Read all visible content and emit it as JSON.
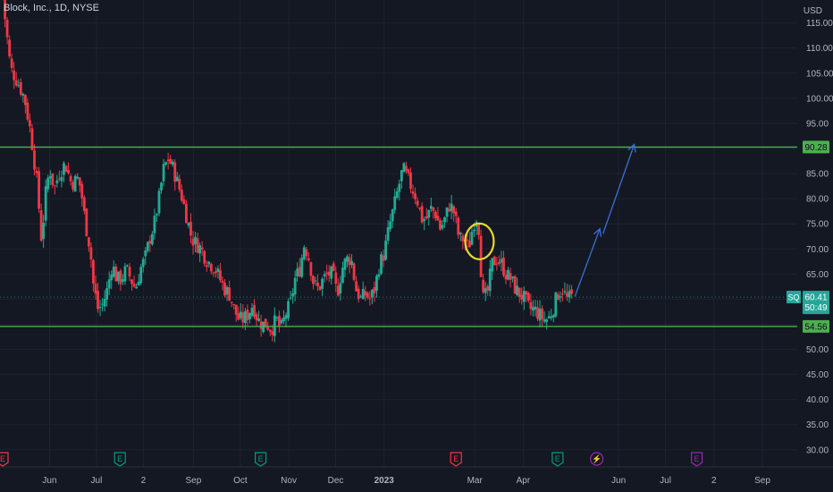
{
  "header": {
    "title": "Block, Inc., 1D, NYSE",
    "currency": "USD"
  },
  "chart_data": {
    "type": "candlestick",
    "symbol": "SQ",
    "ylim": [
      28,
      121
    ],
    "y_ticks": [
      "30.00",
      "35.00",
      "40.00",
      "45.00",
      "50.00",
      "55.00",
      "60.00",
      "65.00",
      "70.00",
      "75.00",
      "80.00",
      "85.00",
      "90.00",
      "95.00",
      "100.00",
      "105.00",
      "110.00",
      "115.00"
    ],
    "x_ticks": [
      "Jun",
      "Jul",
      "2",
      "Sep",
      "Oct",
      "Nov",
      "Dec",
      "2023",
      "Mar",
      "Apr",
      "Jun",
      "Jul",
      "2",
      "Sep"
    ],
    "x_tick_days": [
      30,
      60,
      90,
      122,
      152,
      183,
      213,
      244,
      302,
      333,
      394,
      424,
      455,
      486
    ],
    "x_range_days": [
      0,
      510
    ],
    "last_day": 394,
    "horizontal_lines": [
      {
        "value": 90.28,
        "label": "90.28",
        "color": "#4caf50"
      },
      {
        "value": 54.56,
        "label": "54.56",
        "color": "#4caf50"
      }
    ],
    "last_price": {
      "value": 60.41,
      "label": "60.41",
      "countdown": "50:49",
      "symbol": "SQ"
    },
    "price_path": [
      [
        0,
        120
      ],
      [
        5,
        106
      ],
      [
        10,
        103
      ],
      [
        14,
        100
      ],
      [
        18,
        93
      ],
      [
        22,
        83
      ],
      [
        25,
        71
      ],
      [
        27,
        80
      ],
      [
        30,
        86
      ],
      [
        33,
        82
      ],
      [
        36,
        85
      ],
      [
        40,
        87
      ],
      [
        44,
        83
      ],
      [
        48,
        84
      ],
      [
        50,
        82
      ],
      [
        53,
        75
      ],
      [
        56,
        70
      ],
      [
        58,
        63
      ],
      [
        61,
        58
      ],
      [
        64,
        59
      ],
      [
        67,
        62
      ],
      [
        70,
        67
      ],
      [
        73,
        64
      ],
      [
        76,
        64
      ],
      [
        79,
        66
      ],
      [
        82,
        64
      ],
      [
        85,
        62
      ],
      [
        88,
        66
      ],
      [
        91,
        68
      ],
      [
        94,
        72
      ],
      [
        97,
        75
      ],
      [
        100,
        80
      ],
      [
        103,
        86
      ],
      [
        106,
        88
      ],
      [
        109,
        86
      ],
      [
        112,
        83
      ],
      [
        115,
        80
      ],
      [
        118,
        76
      ],
      [
        121,
        72
      ],
      [
        124,
        71
      ],
      [
        127,
        70
      ],
      [
        130,
        68
      ],
      [
        133,
        67
      ],
      [
        136,
        66
      ],
      [
        139,
        64
      ],
      [
        142,
        62
      ],
      [
        145,
        61
      ],
      [
        148,
        58
      ],
      [
        151,
        56
      ],
      [
        154,
        56
      ],
      [
        157,
        57
      ],
      [
        160,
        59
      ],
      [
        163,
        56
      ],
      [
        166,
        55
      ],
      [
        169,
        55
      ],
      [
        172,
        54
      ],
      [
        175,
        56
      ],
      [
        178,
        54
      ],
      [
        181,
        57
      ],
      [
        184,
        59
      ],
      [
        187,
        64
      ],
      [
        190,
        66
      ],
      [
        193,
        71
      ],
      [
        196,
        68
      ],
      [
        199,
        63
      ],
      [
        202,
        62
      ],
      [
        205,
        64
      ],
      [
        208,
        65
      ],
      [
        211,
        65
      ],
      [
        214,
        61
      ],
      [
        217,
        66
      ],
      [
        220,
        68
      ],
      [
        223,
        68
      ],
      [
        226,
        62
      ],
      [
        229,
        60
      ],
      [
        232,
        61
      ],
      [
        235,
        60
      ],
      [
        238,
        62
      ],
      [
        241,
        67
      ],
      [
        244,
        69
      ],
      [
        247,
        74
      ],
      [
        250,
        78
      ],
      [
        253,
        82
      ],
      [
        256,
        86
      ],
      [
        259,
        84
      ],
      [
        262,
        82
      ],
      [
        265,
        80
      ],
      [
        268,
        76
      ],
      [
        271,
        76
      ],
      [
        274,
        78
      ],
      [
        277,
        77
      ],
      [
        280,
        74
      ],
      [
        283,
        76
      ],
      [
        286,
        79
      ],
      [
        289,
        77
      ],
      [
        292,
        72
      ],
      [
        295,
        72
      ],
      [
        298,
        70
      ],
      [
        301,
        75
      ],
      [
        304,
        77
      ],
      [
        307,
        60
      ],
      [
        310,
        61
      ],
      [
        313,
        67
      ],
      [
        316,
        68
      ],
      [
        319,
        67
      ],
      [
        322,
        65
      ],
      [
        325,
        64
      ],
      [
        328,
        62
      ],
      [
        331,
        61
      ],
      [
        334,
        60
      ],
      [
        337,
        58
      ],
      [
        340,
        58
      ],
      [
        343,
        57
      ],
      [
        346,
        56
      ],
      [
        349,
        56
      ],
      [
        352,
        58
      ],
      [
        355,
        61
      ],
      [
        358,
        62
      ],
      [
        361,
        60
      ],
      [
        364,
        60.4
      ]
    ],
    "annotations": [
      {
        "type": "circle",
        "day": 305,
        "value": 71.5,
        "color": "#e8d829"
      },
      {
        "type": "arrow",
        "from": [
          366,
          60.5
        ],
        "to": [
          382,
          74
        ],
        "color": "#3c6fd8"
      },
      {
        "type": "arrow",
        "from": [
          384,
          73
        ],
        "to": [
          404,
          90.8
        ],
        "color": "#3c6fd8"
      }
    ],
    "events": [
      {
        "day": 0,
        "label": "E",
        "color": "#f23645"
      },
      {
        "day": 75,
        "label": "E",
        "color": "#089981"
      },
      {
        "day": 165,
        "label": "E",
        "color": "#089981"
      },
      {
        "day": 290,
        "label": "E",
        "color": "#f23645"
      },
      {
        "day": 355,
        "label": "E",
        "color": "#089981"
      },
      {
        "day": 380,
        "label": "⚡",
        "color": "#9c27b0"
      },
      {
        "day": 444,
        "label": "E",
        "color": "#9c27b0"
      }
    ]
  }
}
